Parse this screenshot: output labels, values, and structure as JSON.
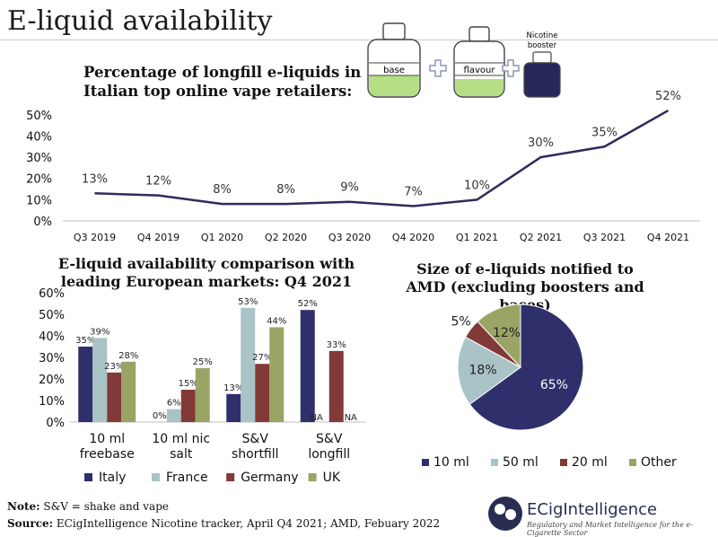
{
  "page": {
    "title": "E-liquid availability",
    "note_label": "Note:",
    "note_text": " S&V = shake and vape",
    "source_label": "Source:",
    "source_text": " ECigIntelligence Nicotine tracker, April Q4 2021; AMD, Febuary 2022"
  },
  "logo": {
    "name": "ECigIntelligence",
    "tagline": "Regulatory and Market Intelligence for the e-Cigarette Sector"
  },
  "bottles": {
    "base_label": "base",
    "flavour_label": "flavour",
    "booster_label": "Nicotine booster",
    "base_fill": "#b5df86",
    "booster_fill": "#26285a",
    "plus_color": "#8f95b6"
  },
  "colors": {
    "line": "#2f2b5c",
    "italy": "#2f2f6c",
    "france": "#a9c3c7",
    "germany": "#823a38",
    "uk": "#9aa565"
  },
  "chart_data": [
    {
      "type": "line",
      "title": "Percentage of longfill e-liquids in Italian top online vape retailers:",
      "categories": [
        "Q3 2019",
        "Q4 2019",
        "Q1 2020",
        "Q2 2020",
        "Q3 2020",
        "Q4 2020",
        "Q1 2021",
        "Q2 2021",
        "Q3 2021",
        "Q4 2021"
      ],
      "values": [
        13,
        12,
        8,
        8,
        9,
        7,
        10,
        30,
        35,
        52
      ],
      "value_labels": [
        "13%",
        "12%",
        "8%",
        "8%",
        "9%",
        "7%",
        "10%",
        "30%",
        "35%",
        "52%"
      ],
      "ylim": [
        0,
        55
      ],
      "yticks": [
        "0%",
        "10%",
        "20%",
        "30%",
        "40%",
        "50%"
      ],
      "ytick_values": [
        0,
        10,
        20,
        30,
        40,
        50
      ],
      "grid": false
    },
    {
      "type": "bar",
      "title": "E-liquid availability comparison with leading European markets: Q4 2021",
      "categories": [
        [
          "10 ml",
          "freebase"
        ],
        [
          "10 ml nic",
          "salt"
        ],
        [
          "S&V",
          "shortfill"
        ],
        [
          "S&V",
          "longfill"
        ]
      ],
      "series": [
        {
          "name": "Italy",
          "values": [
            35,
            0,
            13,
            52
          ],
          "labels": [
            "35%",
            "0%",
            "13%",
            "52%"
          ]
        },
        {
          "name": "France",
          "values": [
            39,
            6,
            53,
            null
          ],
          "labels": [
            "39%",
            "6%",
            "53%",
            ""
          ]
        },
        {
          "name": "Germany",
          "values": [
            23,
            15,
            27,
            33
          ],
          "labels": [
            "23%",
            "15%",
            "27%",
            "33%"
          ]
        },
        {
          "name": "UK",
          "values": [
            28,
            25,
            44,
            null
          ],
          "labels": [
            "28%",
            "25%",
            "44%",
            "NA"
          ]
        }
      ],
      "na_labels": [
        "NA",
        "NA"
      ],
      "ylim": [
        0,
        60
      ],
      "yticks": [
        "0%",
        "10%",
        "20%",
        "30%",
        "40%",
        "50%",
        "60%"
      ],
      "ytick_values": [
        0,
        10,
        20,
        30,
        40,
        50,
        60
      ],
      "legend_position": "bottom",
      "grid": false
    },
    {
      "type": "pie",
      "title": "Size of e-liquids notified to AMD (excluding boosters and bases)",
      "slices": [
        {
          "name": "10 ml",
          "value": 65,
          "label": "65%",
          "color": "#2f2f6c"
        },
        {
          "name": "50 ml",
          "value": 18,
          "label": "18%",
          "color": "#a9c3c7"
        },
        {
          "name": "20 ml",
          "value": 5,
          "label": "5%",
          "color": "#823a38"
        },
        {
          "name": "Other",
          "value": 12,
          "label": "12%",
          "color": "#9aa565"
        }
      ],
      "legend_position": "bottom"
    }
  ]
}
